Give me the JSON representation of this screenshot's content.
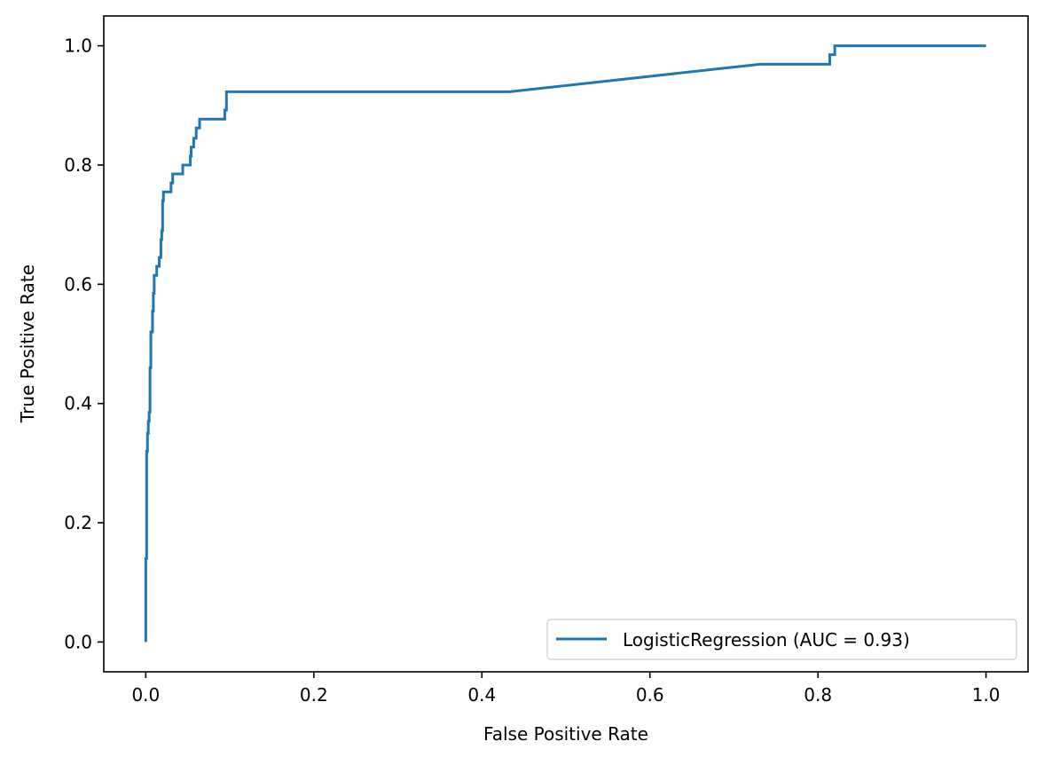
{
  "chart_data": {
    "type": "line",
    "xlabel": "False Positive Rate",
    "ylabel": "True Positive Rate",
    "xlim": [
      -0.05,
      1.05
    ],
    "ylim": [
      -0.05,
      1.05
    ],
    "xticks": [
      0.0,
      0.2,
      0.4,
      0.6,
      0.8,
      1.0
    ],
    "yticks": [
      0.0,
      0.2,
      0.4,
      0.6,
      0.8,
      1.0
    ],
    "xtick_labels": [
      "0.0",
      "0.2",
      "0.4",
      "0.6",
      "0.8",
      "1.0"
    ],
    "ytick_labels": [
      "0.0",
      "0.2",
      "0.4",
      "0.6",
      "0.8",
      "1.0"
    ],
    "grid": false,
    "legend": {
      "position": "lower-right",
      "entries": [
        "LogisticRegression (AUC = 0.93)"
      ]
    },
    "series": [
      {
        "name": "LogisticRegression (AUC = 0.93)",
        "color": "#1f77b4",
        "points": [
          [
            0.0,
            0.0
          ],
          [
            0.0,
            0.14
          ],
          [
            0.001,
            0.14
          ],
          [
            0.001,
            0.23
          ],
          [
            0.001,
            0.32
          ],
          [
            0.002,
            0.32
          ],
          [
            0.002,
            0.35
          ],
          [
            0.003,
            0.35
          ],
          [
            0.003,
            0.37
          ],
          [
            0.004,
            0.37
          ],
          [
            0.004,
            0.385
          ],
          [
            0.005,
            0.385
          ],
          [
            0.005,
            0.46
          ],
          [
            0.006,
            0.46
          ],
          [
            0.006,
            0.52
          ],
          [
            0.008,
            0.52
          ],
          [
            0.008,
            0.555
          ],
          [
            0.009,
            0.555
          ],
          [
            0.009,
            0.585
          ],
          [
            0.01,
            0.585
          ],
          [
            0.01,
            0.615
          ],
          [
            0.013,
            0.615
          ],
          [
            0.013,
            0.63
          ],
          [
            0.016,
            0.63
          ],
          [
            0.016,
            0.645
          ],
          [
            0.018,
            0.645
          ],
          [
            0.018,
            0.675
          ],
          [
            0.019,
            0.675
          ],
          [
            0.019,
            0.69
          ],
          [
            0.02,
            0.69
          ],
          [
            0.02,
            0.74
          ],
          [
            0.021,
            0.74
          ],
          [
            0.021,
            0.755
          ],
          [
            0.03,
            0.755
          ],
          [
            0.03,
            0.77
          ],
          [
            0.032,
            0.77
          ],
          [
            0.032,
            0.785
          ],
          [
            0.044,
            0.785
          ],
          [
            0.044,
            0.8
          ],
          [
            0.053,
            0.8
          ],
          [
            0.053,
            0.815
          ],
          [
            0.054,
            0.815
          ],
          [
            0.054,
            0.83
          ],
          [
            0.057,
            0.83
          ],
          [
            0.057,
            0.845
          ],
          [
            0.06,
            0.845
          ],
          [
            0.06,
            0.862
          ],
          [
            0.064,
            0.862
          ],
          [
            0.064,
            0.877
          ],
          [
            0.094,
            0.877
          ],
          [
            0.094,
            0.892
          ],
          [
            0.096,
            0.892
          ],
          [
            0.096,
            0.923
          ],
          [
            0.433,
            0.923
          ],
          [
            0.731,
            0.969
          ],
          [
            0.814,
            0.969
          ],
          [
            0.814,
            0.985
          ],
          [
            0.82,
            0.985
          ],
          [
            0.82,
            1.0
          ],
          [
            1.0,
            1.0
          ]
        ]
      }
    ]
  }
}
